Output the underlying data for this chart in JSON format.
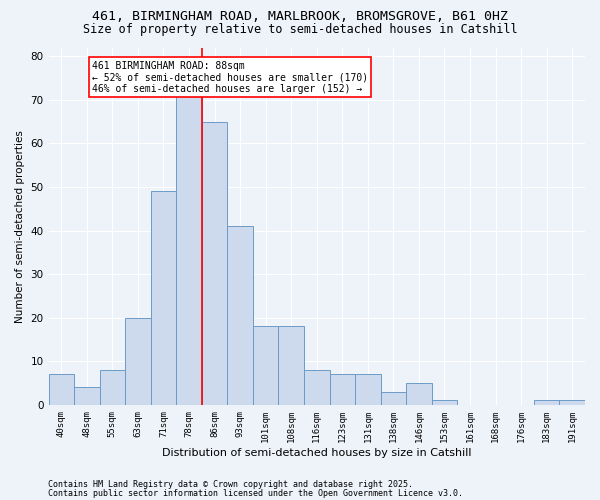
{
  "title": "461, BIRMINGHAM ROAD, MARLBROOK, BROMSGROVE, B61 0HZ",
  "subtitle": "Size of property relative to semi-detached houses in Catshill",
  "xlabel": "Distribution of semi-detached houses by size in Catshill",
  "ylabel": "Number of semi-detached properties",
  "categories": [
    "40sqm",
    "48sqm",
    "55sqm",
    "63sqm",
    "71sqm",
    "78sqm",
    "86sqm",
    "93sqm",
    "101sqm",
    "108sqm",
    "116sqm",
    "123sqm",
    "131sqm",
    "138sqm",
    "146sqm",
    "153sqm",
    "161sqm",
    "168sqm",
    "176sqm",
    "183sqm",
    "191sqm"
  ],
  "values": [
    7,
    4,
    8,
    20,
    49,
    72,
    65,
    41,
    18,
    18,
    8,
    7,
    7,
    3,
    5,
    1,
    0,
    0,
    0,
    1,
    1
  ],
  "bar_color": "#cdd9ec",
  "bar_edge_color": "#6b9bc8",
  "red_line_x": 5.5,
  "annotation_title": "461 BIRMINGHAM ROAD: 88sqm",
  "annotation_line1": "← 52% of semi-detached houses are smaller (170)",
  "annotation_line2": "46% of semi-detached houses are larger (152) →",
  "ylim": [
    0,
    82
  ],
  "yticks": [
    0,
    10,
    20,
    30,
    40,
    50,
    60,
    70,
    80
  ],
  "footer1": "Contains HM Land Registry data © Crown copyright and database right 2025.",
  "footer2": "Contains public sector information licensed under the Open Government Licence v3.0.",
  "background_color": "#eef2f9",
  "grid_color": "#ffffff"
}
